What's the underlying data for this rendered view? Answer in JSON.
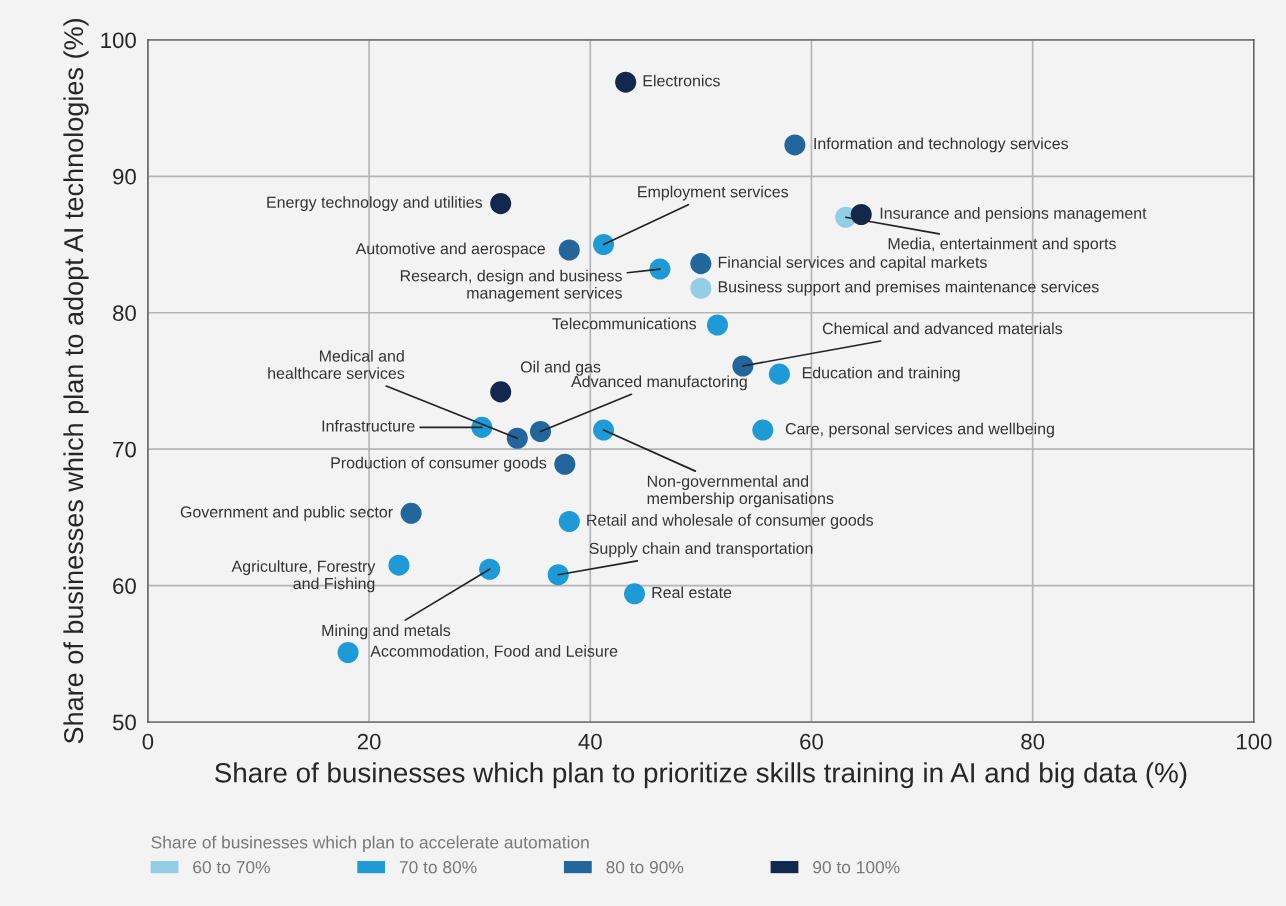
{
  "chart_data": {
    "type": "scatter",
    "xlabel": "Share of businesses which plan to prioritize skills training in AI and big data (%)",
    "ylabel": "Share of businesses which plan to adopt AI technologies (%)",
    "legend_title": "Share of businesses which plan to accelerate automation",
    "legend": "bottom",
    "grid": true,
    "marker": "circle",
    "xlim": [
      0,
      100
    ],
    "ylim": [
      50,
      100
    ],
    "xticks": [
      0,
      20,
      40,
      60,
      80,
      100
    ],
    "yticks": [
      50,
      60,
      70,
      80,
      90,
      100
    ],
    "series": [
      {
        "name": "60 to 70%",
        "color": "#93cde6",
        "x": [
          63.1,
          50.0
        ],
        "values": [
          87.0,
          81.8
        ]
      },
      {
        "name": "70 to 80%",
        "color": "#1e9bd7",
        "x": [
          41.2,
          46.3,
          51.5,
          57.1,
          30.2,
          41.2,
          55.6,
          38.1,
          22.7,
          30.9,
          37.1,
          44.0,
          18.1
        ],
        "values": [
          85.0,
          83.2,
          79.1,
          75.5,
          71.6,
          71.4,
          71.4,
          64.7,
          61.5,
          61.2,
          60.8,
          59.4,
          55.1
        ]
      },
      {
        "name": "80 to 90%",
        "color": "#23669b",
        "x": [
          58.5,
          38.1,
          50.0,
          53.8,
          33.4,
          35.5,
          37.7,
          23.8
        ],
        "values": [
          92.3,
          84.6,
          83.6,
          76.1,
          70.8,
          71.3,
          68.9,
          65.3
        ]
      },
      {
        "name": "90 to 100%",
        "color": "#13284f",
        "x": [
          43.2,
          31.9,
          64.5,
          31.9
        ],
        "values": [
          96.9,
          88.0,
          87.2,
          74.2
        ]
      }
    ],
    "annotations": [
      {
        "text": "Media, entertainment and sports",
        "x": 63.1,
        "y": 87.0
      },
      {
        "text": "Business support and premises maintenance services",
        "x": 50.0,
        "y": 81.8
      },
      {
        "text": "Employment services",
        "x": 41.2,
        "y": 85.0
      },
      {
        "text": "Research, design and business\nmanagement services",
        "x": 46.3,
        "y": 83.2
      },
      {
        "text": "Telecommunications",
        "x": 51.5,
        "y": 79.1
      },
      {
        "text": "Education and training",
        "x": 57.1,
        "y": 75.5
      },
      {
        "text": "Infrastructure",
        "x": 30.2,
        "y": 71.6
      },
      {
        "text": "Non-governmental and\nmembership organisations",
        "x": 41.2,
        "y": 71.4
      },
      {
        "text": "Care, personal services and wellbeing",
        "x": 55.6,
        "y": 71.4
      },
      {
        "text": "Retail and wholesale of consumer goods",
        "x": 38.1,
        "y": 64.7
      },
      {
        "text": "Agriculture, Forestry\nand Fishing",
        "x": 22.7,
        "y": 61.5
      },
      {
        "text": "Mining and metals",
        "x": 30.9,
        "y": 61.2
      },
      {
        "text": "Supply chain and transportation",
        "x": 37.1,
        "y": 60.8
      },
      {
        "text": "Real estate",
        "x": 44.0,
        "y": 59.4
      },
      {
        "text": "Accommodation, Food and Leisure",
        "x": 18.1,
        "y": 55.1
      },
      {
        "text": "Information and technology services",
        "x": 58.5,
        "y": 92.3
      },
      {
        "text": "Automotive and aerospace",
        "x": 38.1,
        "y": 84.6
      },
      {
        "text": "Financial services and capital markets",
        "x": 50.0,
        "y": 83.6
      },
      {
        "text": "Chemical and advanced materials",
        "x": 53.8,
        "y": 76.1
      },
      {
        "text": "Medical and\nhealthcare services",
        "x": 33.4,
        "y": 70.8
      },
      {
        "text": "Advanced manufactoring",
        "x": 35.5,
        "y": 71.3
      },
      {
        "text": "Production of consumer goods",
        "x": 37.7,
        "y": 68.9
      },
      {
        "text": "Government and public sector",
        "x": 23.8,
        "y": 65.3
      },
      {
        "text": "Electronics",
        "x": 43.2,
        "y": 96.9
      },
      {
        "text": "Energy technology and utilities",
        "x": 31.9,
        "y": 88.0
      },
      {
        "text": "Insurance and pensions management",
        "x": 64.5,
        "y": 87.2
      },
      {
        "text": "Oil and gas",
        "x": 31.9,
        "y": 74.2
      }
    ]
  }
}
